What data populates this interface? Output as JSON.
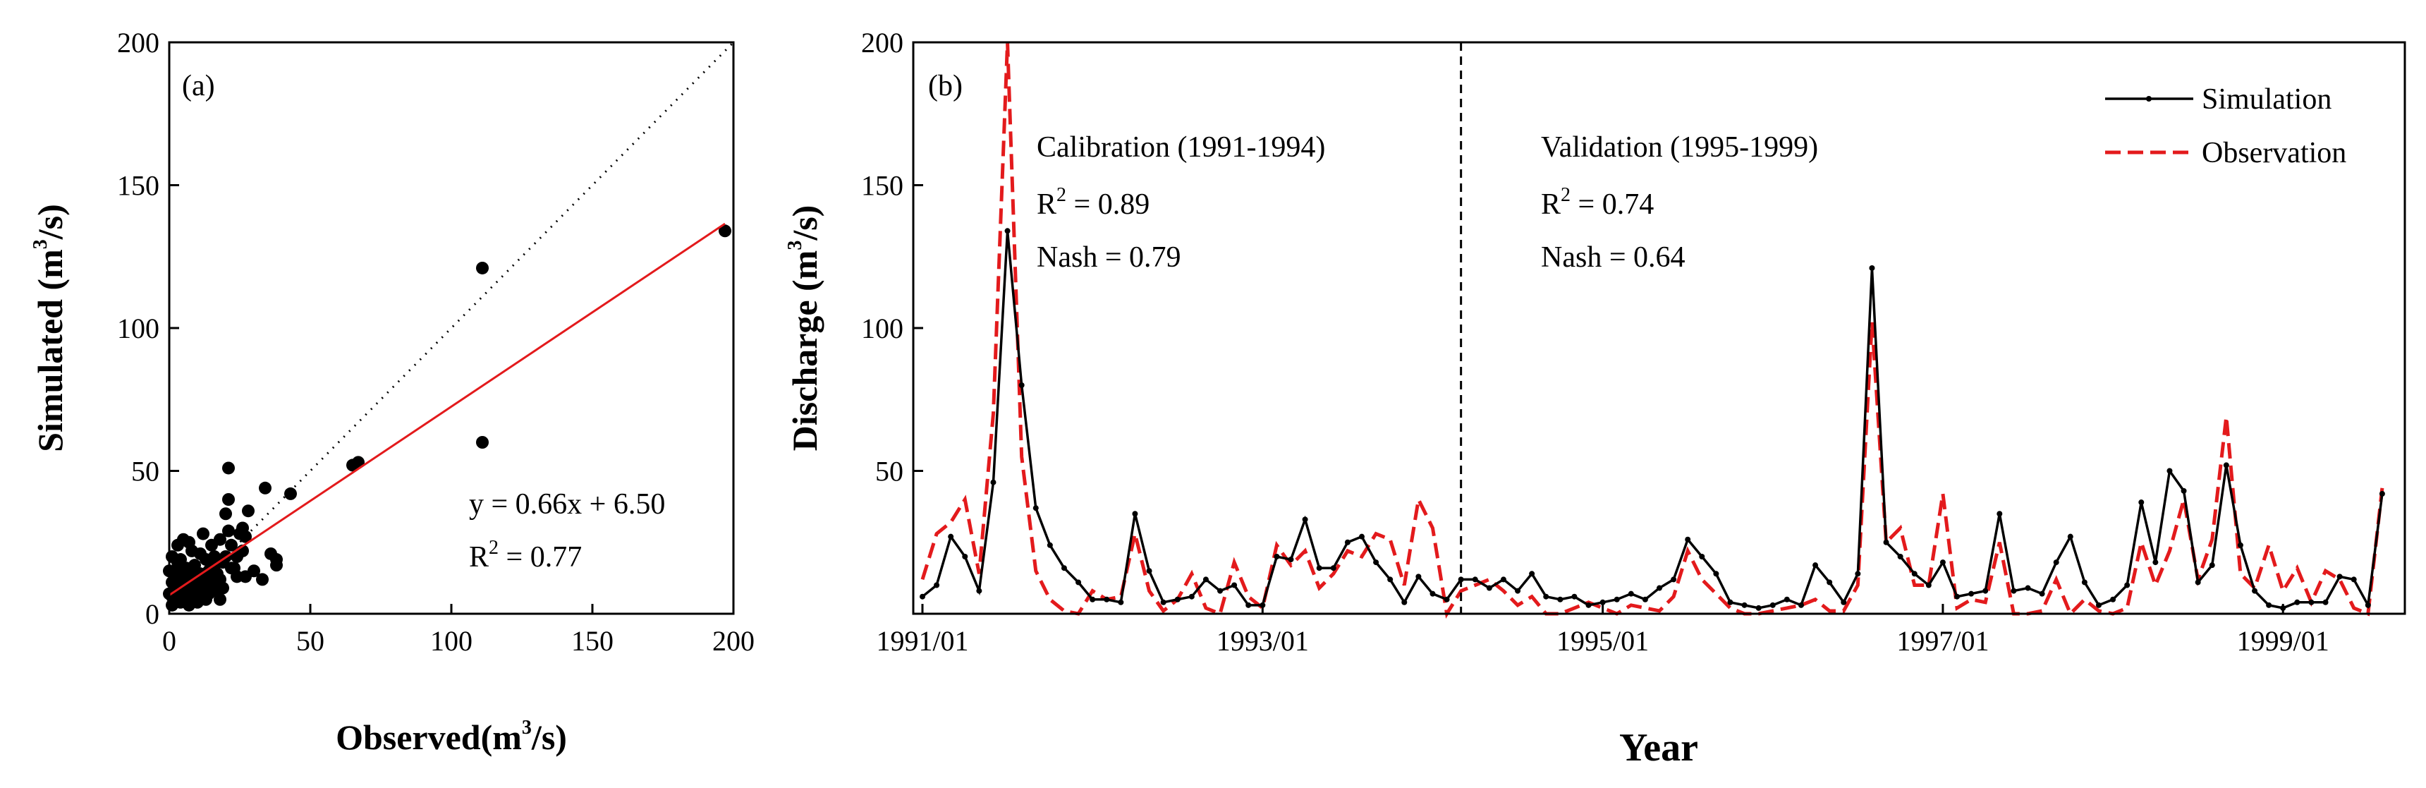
{
  "chart_data": [
    {
      "panel_label": "(a)",
      "type": "scatter",
      "xlabel": "Observed",
      "xlabel_unit": "m",
      "xlabel_unit_sup": "3",
      "xlabel_unit_tail": "/s)",
      "xlabel_paren": "(",
      "ylabel": "Simulated",
      "ylabel_unit": "(m",
      "ylabel_unit_sup": "3",
      "ylabel_unit_tail": "/s)",
      "xlim": [
        0,
        200
      ],
      "ylim": [
        0,
        200
      ],
      "xticks": [
        "0",
        "50",
        "100",
        "150",
        "200"
      ],
      "yticks": [
        "0",
        "50",
        "100",
        "150",
        "200"
      ],
      "one_to_one_line": true,
      "fit_line": {
        "slope": 0.66,
        "intercept": 6.5,
        "color": "#e31a1c"
      },
      "equation_text": "y = 0.66x + 6.50",
      "r2_label": "R",
      "r2_sup": "2",
      "r2_text": " = 0.77",
      "points": [
        [
          197,
          134
        ],
        [
          111,
          121
        ],
        [
          111,
          60
        ],
        [
          67,
          53
        ],
        [
          65,
          52
        ],
        [
          43,
          42
        ],
        [
          38,
          19
        ],
        [
          38,
          17
        ],
        [
          36,
          21
        ],
        [
          34,
          44
        ],
        [
          28,
          36
        ],
        [
          27,
          13
        ],
        [
          26,
          30
        ],
        [
          25,
          28
        ],
        [
          24,
          20
        ],
        [
          23,
          16
        ],
        [
          22,
          24
        ],
        [
          21,
          51
        ],
        [
          21,
          40
        ],
        [
          20,
          20
        ],
        [
          20,
          35
        ],
        [
          19,
          18
        ],
        [
          18,
          12
        ],
        [
          18,
          26
        ],
        [
          17,
          8
        ],
        [
          16,
          20
        ],
        [
          16,
          17
        ],
        [
          15,
          11
        ],
        [
          15,
          24
        ],
        [
          14,
          7
        ],
        [
          14,
          15
        ],
        [
          13,
          19
        ],
        [
          13,
          5
        ],
        [
          12,
          12
        ],
        [
          12,
          28
        ],
        [
          11,
          9
        ],
        [
          11,
          21
        ],
        [
          10,
          4
        ],
        [
          10,
          14
        ],
        [
          10,
          6
        ],
        [
          9,
          17
        ],
        [
          9,
          10
        ],
        [
          8,
          12
        ],
        [
          8,
          5
        ],
        [
          8,
          22
        ],
        [
          7,
          8
        ],
        [
          7,
          14
        ],
        [
          6,
          4
        ],
        [
          6,
          16
        ],
        [
          6,
          10
        ],
        [
          5,
          6
        ],
        [
          5,
          26
        ],
        [
          5,
          12
        ],
        [
          4,
          4
        ],
        [
          4,
          19
        ],
        [
          4,
          8
        ],
        [
          3,
          13
        ],
        [
          3,
          5
        ],
        [
          3,
          24
        ],
        [
          2,
          9
        ],
        [
          2,
          15
        ],
        [
          2,
          4
        ],
        [
          1,
          6
        ],
        [
          1,
          20
        ],
        [
          1,
          11
        ],
        [
          1,
          3
        ],
        [
          0,
          7
        ],
        [
          0,
          15
        ],
        [
          3,
          18
        ],
        [
          5,
          9
        ],
        [
          7,
          3
        ],
        [
          9,
          7
        ],
        [
          11,
          14
        ],
        [
          13,
          11
        ],
        [
          15,
          9
        ],
        [
          17,
          14
        ],
        [
          19,
          9
        ],
        [
          21,
          29
        ],
        [
          24,
          13
        ],
        [
          27,
          27
        ],
        [
          30,
          15
        ],
        [
          33,
          12
        ],
        [
          26,
          22
        ],
        [
          22,
          16
        ],
        [
          18,
          5
        ],
        [
          12,
          8
        ],
        [
          7,
          25
        ]
      ]
    },
    {
      "panel_label": "(b)",
      "type": "line",
      "xlabel": "Year",
      "ylabel": "Discharge",
      "ylabel_unit": "(m",
      "ylabel_unit_sup": "3",
      "ylabel_unit_tail": "/s)",
      "ylim": [
        0,
        200
      ],
      "yticks": [
        "50",
        "100",
        "150",
        "200"
      ],
      "xlim_months": [
        0,
        104
      ],
      "xtick_positions_months": [
        0,
        24,
        48,
        72,
        96
      ],
      "xticks": [
        "1991/01",
        "1993/01",
        "1995/01",
        "1997/01",
        "1999/01"
      ],
      "divider_month": 38,
      "calibration_title": "Calibration (1991-1994)",
      "calibration_r2_label": "R",
      "calibration_r2_sup": "2",
      "calibration_r2_text": " = 0.89",
      "calibration_nash": "Nash = 0.79",
      "validation_title": "Validation (1995-1999)",
      "validation_r2_label": "R",
      "validation_r2_sup": "2",
      "validation_r2_text": " = 0.74",
      "validation_nash": "Nash = 0.64",
      "legend_position": "top-right",
      "series": [
        {
          "name": "Simulation",
          "color": "#000000",
          "style": "solid-with-markers",
          "values": [
            6,
            10,
            27,
            20,
            8,
            46,
            134,
            80,
            37,
            24,
            16,
            11,
            5,
            5,
            4,
            35,
            15,
            4,
            5,
            6,
            12,
            8,
            10,
            3,
            3,
            20,
            19,
            33,
            16,
            16,
            25,
            27,
            18,
            12,
            4,
            13,
            7,
            5,
            12,
            12,
            9,
            12,
            8,
            14,
            6,
            5,
            6,
            3,
            4,
            5,
            7,
            5,
            9,
            12,
            26,
            20,
            14,
            4,
            3,
            2,
            3,
            5,
            3,
            17,
            11,
            4,
            14,
            121,
            25,
            20,
            14,
            10,
            18,
            6,
            7,
            8,
            35,
            8,
            9,
            7,
            18,
            27,
            11,
            3,
            5,
            10,
            39,
            18,
            50,
            43,
            11,
            17,
            52,
            24,
            8,
            3,
            2,
            4,
            4,
            4,
            13,
            12,
            3,
            42
          ]
        },
        {
          "name": "Observation",
          "color": "#e31a1c",
          "style": "dashed",
          "values": [
            12,
            28,
            32,
            40,
            14,
            70,
            200,
            55,
            15,
            5,
            1,
            0,
            8,
            5,
            6,
            28,
            8,
            1,
            5,
            14,
            2,
            0,
            18,
            6,
            2,
            24,
            17,
            22,
            9,
            14,
            22,
            20,
            28,
            26,
            10,
            40,
            30,
            0,
            8,
            10,
            12,
            8,
            3,
            6,
            0,
            0,
            2,
            4,
            2,
            0,
            3,
            2,
            1,
            6,
            22,
            12,
            7,
            2,
            0,
            0,
            1,
            2,
            3,
            5,
            1,
            1,
            10,
            102,
            25,
            30,
            10,
            10,
            42,
            2,
            5,
            4,
            25,
            0,
            0,
            1,
            12,
            0,
            5,
            1,
            0,
            2,
            25,
            10,
            22,
            40,
            12,
            26,
            69,
            14,
            9,
            24,
            8,
            16,
            4,
            15,
            12,
            2,
            0,
            44
          ]
        }
      ]
    }
  ]
}
